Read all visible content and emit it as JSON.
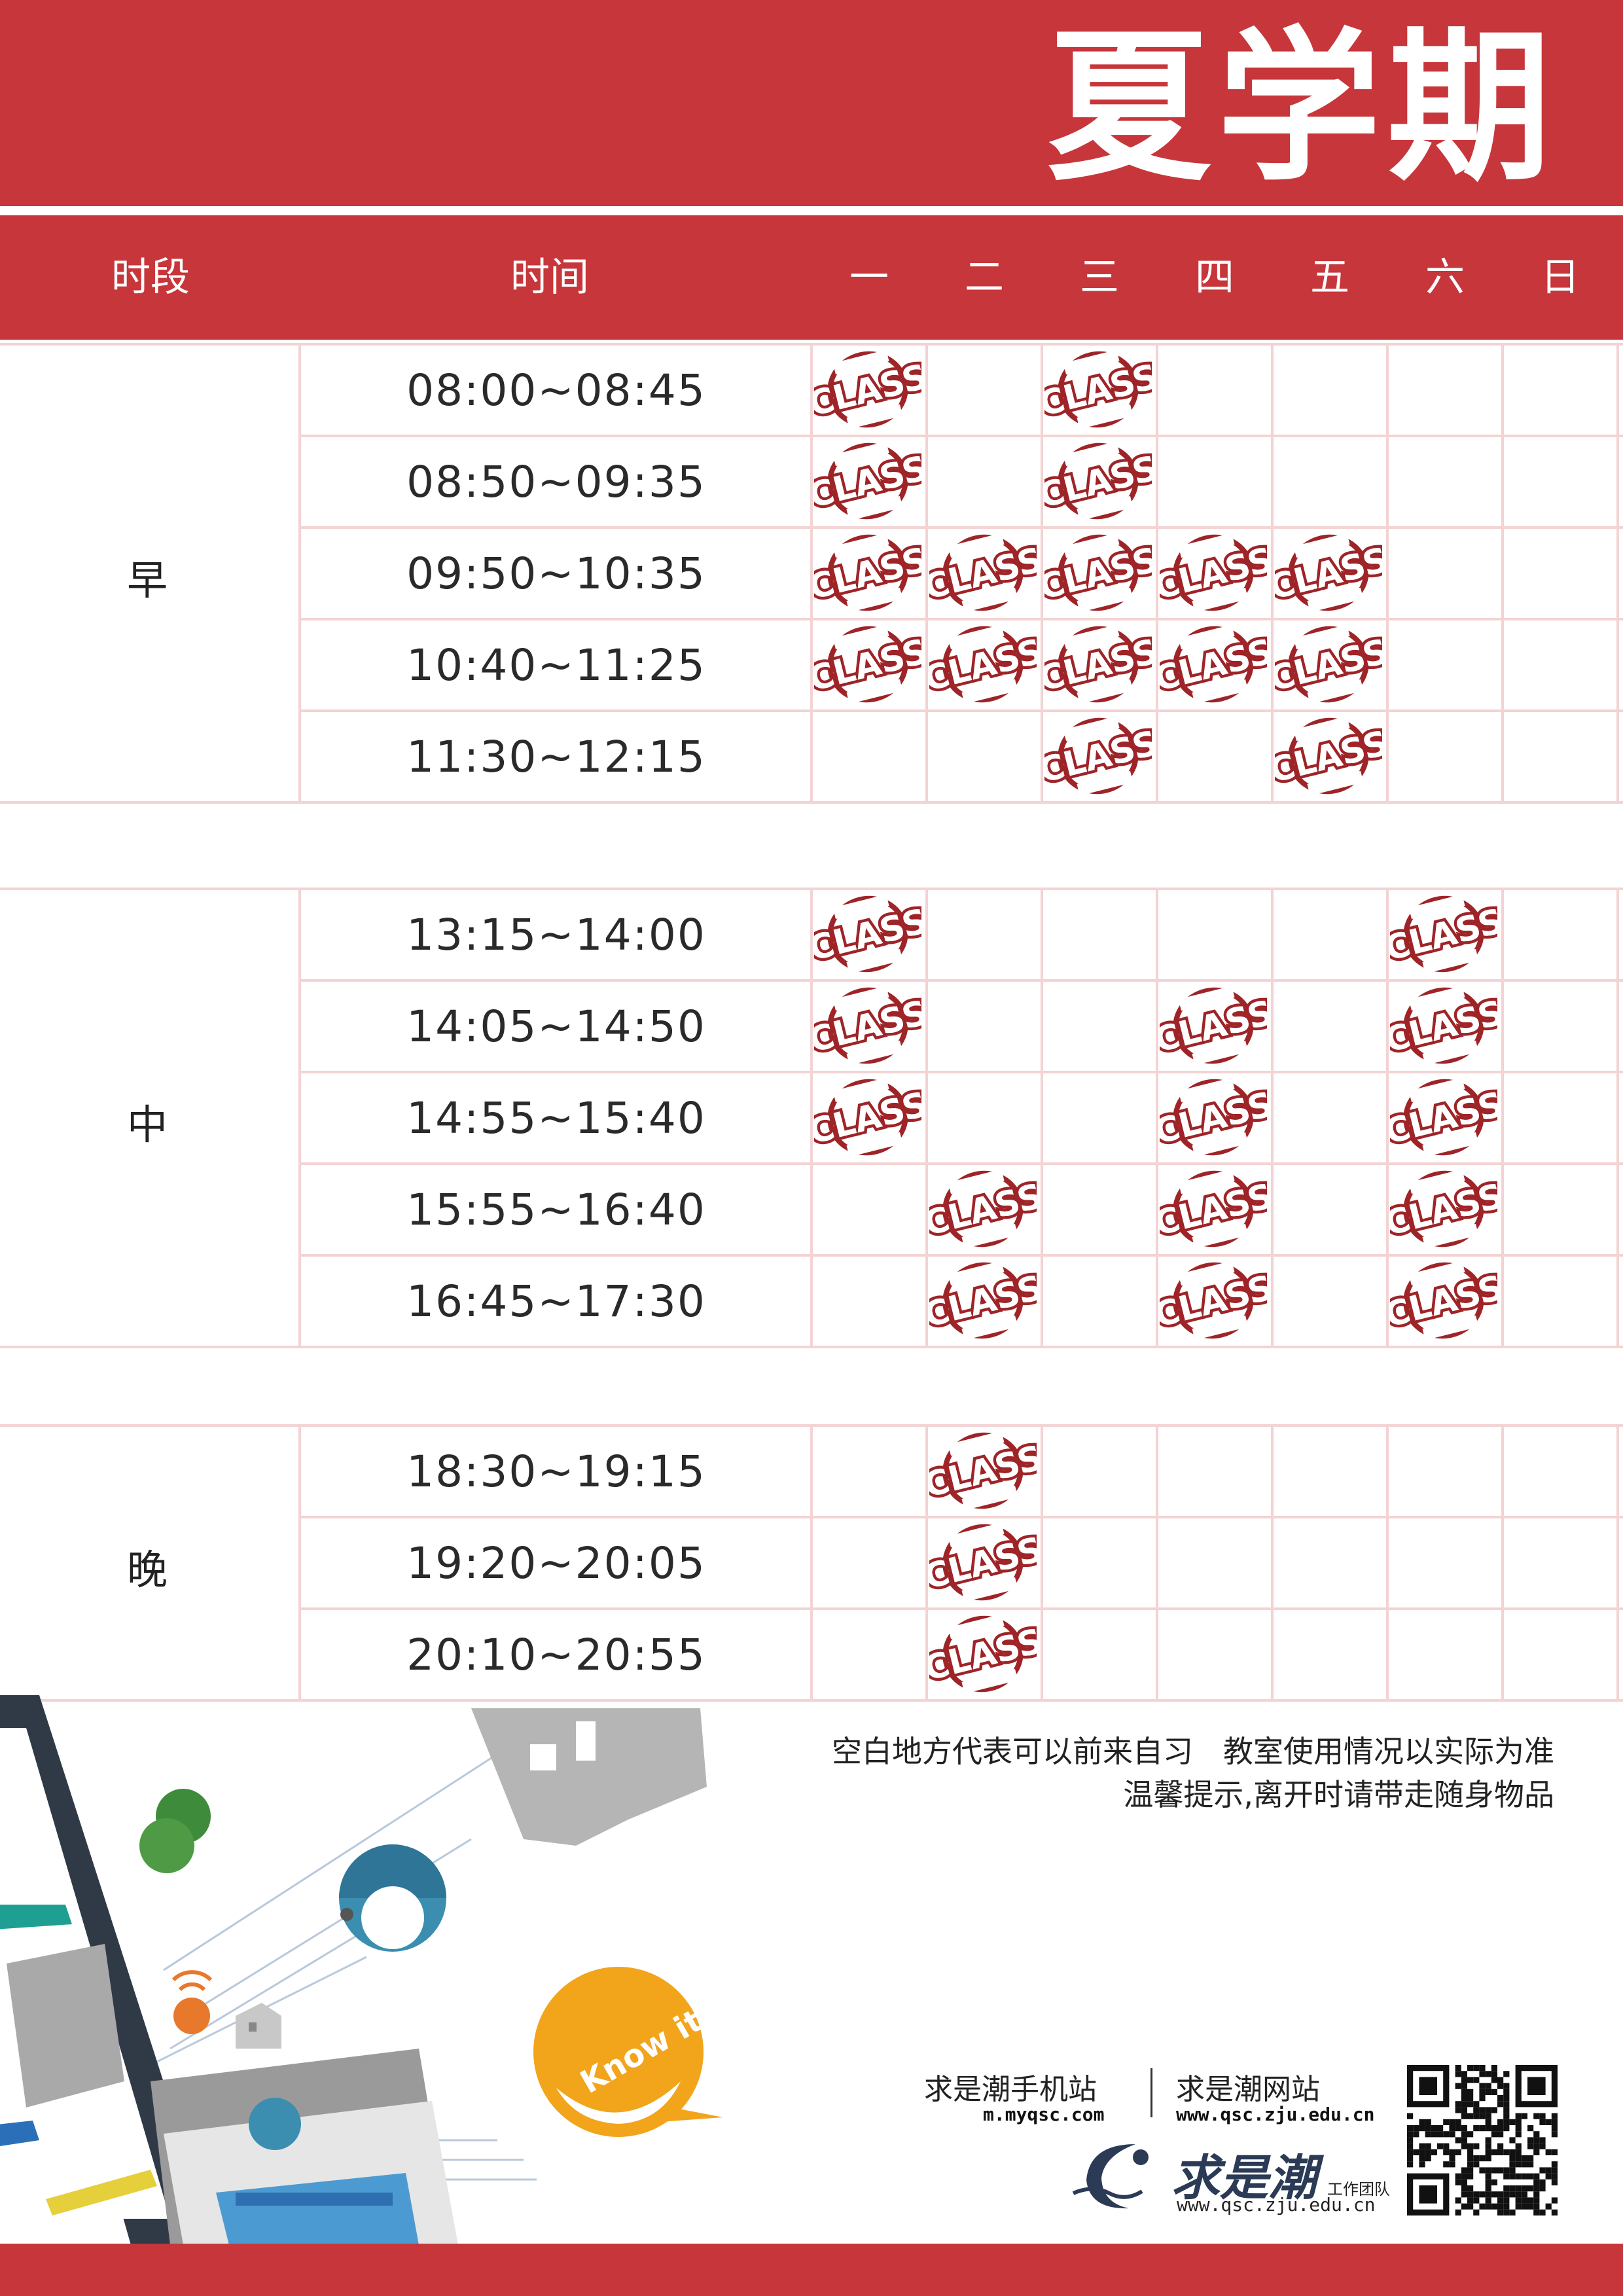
{
  "title": "夏学期",
  "header": {
    "period_label": "时段",
    "time_label": "时间",
    "days": [
      "一",
      "二",
      "三",
      "四",
      "五",
      "六",
      "日"
    ]
  },
  "stamp_text": "CLASS",
  "colors": {
    "brand_red": "#c7363a",
    "stamp_red": "#9e2428",
    "grid_line": "#f3d3d3"
  },
  "sections": [
    {
      "name": "早",
      "slots": [
        {
          "time": "08:00~08:45",
          "classes": [
            1,
            0,
            1,
            0,
            0,
            0,
            0
          ]
        },
        {
          "time": "08:50~09:35",
          "classes": [
            1,
            0,
            1,
            0,
            0,
            0,
            0
          ]
        },
        {
          "time": "09:50~10:35",
          "classes": [
            1,
            1,
            1,
            1,
            1,
            0,
            0
          ]
        },
        {
          "time": "10:40~11:25",
          "classes": [
            1,
            1,
            1,
            1,
            1,
            0,
            0
          ]
        },
        {
          "time": "11:30~12:15",
          "classes": [
            0,
            0,
            1,
            0,
            1,
            0,
            0
          ]
        }
      ]
    },
    {
      "name": "中",
      "slots": [
        {
          "time": "13:15~14:00",
          "classes": [
            1,
            0,
            0,
            0,
            0,
            1,
            0
          ]
        },
        {
          "time": "14:05~14:50",
          "classes": [
            1,
            0,
            0,
            1,
            0,
            1,
            0
          ]
        },
        {
          "time": "14:55~15:40",
          "classes": [
            1,
            0,
            0,
            1,
            0,
            1,
            0
          ]
        },
        {
          "time": "15:55~16:40",
          "classes": [
            0,
            1,
            0,
            1,
            0,
            1,
            0
          ]
        },
        {
          "time": "16:45~17:30",
          "classes": [
            0,
            1,
            0,
            1,
            0,
            1,
            0
          ]
        }
      ]
    },
    {
      "name": "晚",
      "slots": [
        {
          "time": "18:30~19:15",
          "classes": [
            0,
            1,
            0,
            0,
            0,
            0,
            0
          ]
        },
        {
          "time": "19:20~20:05",
          "classes": [
            0,
            1,
            0,
            0,
            0,
            0,
            0
          ]
        },
        {
          "time": "20:10~20:55",
          "classes": [
            0,
            1,
            0,
            0,
            0,
            0,
            0
          ]
        }
      ]
    }
  ],
  "notes": {
    "line1": "空白地方代表可以前来自习　教室使用情况以实际为准",
    "line2": "温馨提示,离开时请带走随身物品"
  },
  "illustration": {
    "bubble_text": "Know it!"
  },
  "footer": {
    "mobile_label": "求是潮手机站",
    "mobile_url": "m.myqsc.com",
    "web_label": "求是潮网站",
    "web_url": "www.qsc.zju.edu.cn",
    "logo_text": "求是潮",
    "logo_subtitle": "工作团队",
    "logo_url": "www.qsc.zju.edu.cn"
  }
}
